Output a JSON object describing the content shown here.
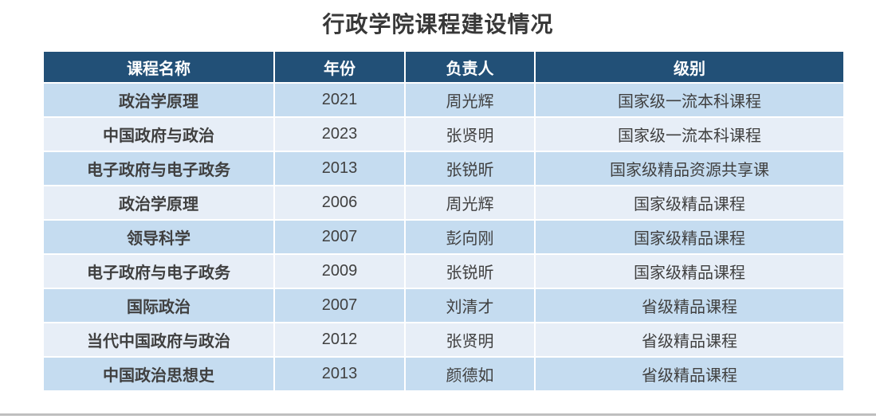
{
  "page": {
    "title": "行政学院课程建设情况"
  },
  "chart_data": {
    "type": "table",
    "title": "行政学院课程建设情况",
    "columns": [
      "课程名称",
      "年份",
      "负责人",
      "级别"
    ],
    "rows": [
      [
        "政治学原理",
        "2021",
        "周光辉",
        "国家级一流本科课程"
      ],
      [
        "中国政府与政治",
        "2023",
        "张贤明",
        "国家级一流本科课程"
      ],
      [
        "电子政府与电子政务",
        "2013",
        "张锐昕",
        "国家级精品资源共享课"
      ],
      [
        "政治学原理",
        "2006",
        "周光辉",
        "国家级精品课程"
      ],
      [
        "领导科学",
        "2007",
        "彭向刚",
        "国家级精品课程"
      ],
      [
        "电子政府与电子政务",
        "2009",
        "张锐昕",
        "国家级精品课程"
      ],
      [
        "国际政治",
        "2007",
        "刘清才",
        "省级精品课程"
      ],
      [
        "当代中国政府与政治",
        "2012",
        "张贤明",
        "省级精品课程"
      ],
      [
        "中国政治思想史",
        "2013",
        "颜德如",
        "省级精品课程"
      ]
    ],
    "layout": {
      "header_position": "top",
      "banded_rows": true,
      "grid_color": "#ffffff"
    },
    "colors": {
      "header_bg": "#225077",
      "header_text": "#FFFFFF",
      "row_odd_bg": "#C5DCF0",
      "row_even_bg": "#E7EEF7",
      "body_text": "#404040",
      "title_text": "#383838",
      "bottom_rule": "#BFBFBF"
    }
  }
}
